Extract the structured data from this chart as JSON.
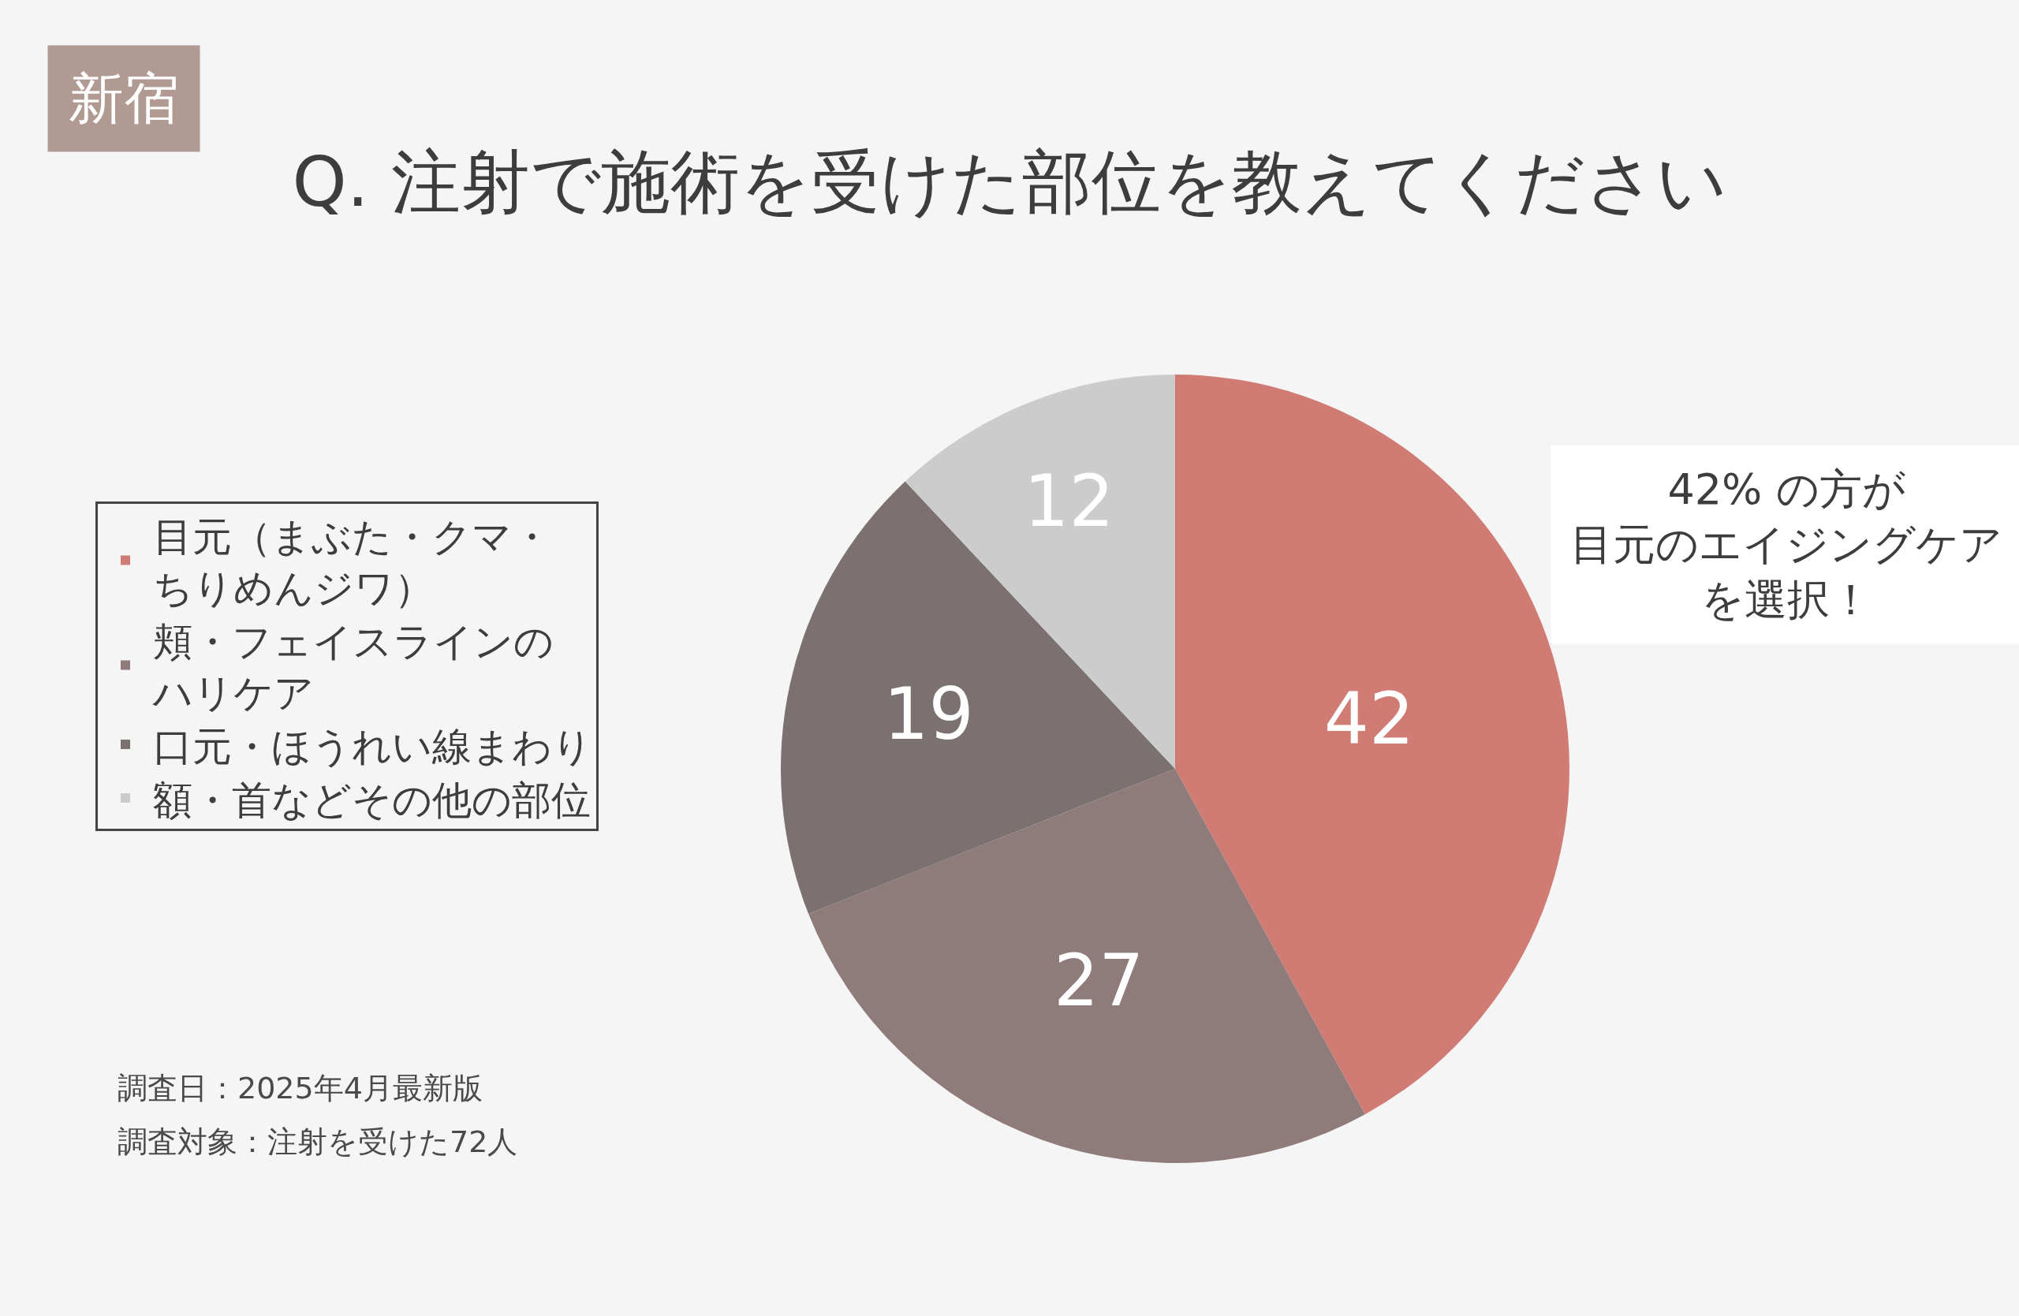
{
  "chart_data": {
    "type": "pie",
    "title": "Q. 注射で施術を受けた部位を教えてください",
    "categories": [
      "目元（まぶた・クマ・ちりめんジワ）",
      "頬・フェイスラインのハリケア",
      "口元・ほうれい線まわり",
      "額・首などその他の部位"
    ],
    "values": [
      42,
      27,
      19,
      12
    ],
    "colors": [
      "#d07b74",
      "#8f7b7a",
      "#7a7170",
      "#cccccc"
    ],
    "data_labels": true,
    "legend": "left",
    "annotations": [
      "新宿",
      "42% の方が目元のエイジングケアを選択！",
      "調査日：2025年4月最新版",
      "調査対象：注射を受けた72人"
    ]
  }
}
